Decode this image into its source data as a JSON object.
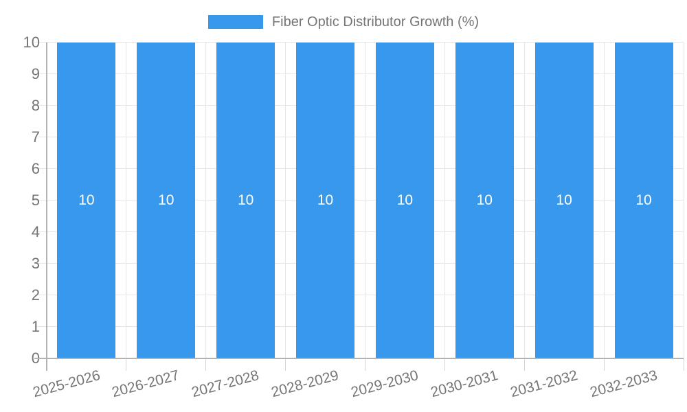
{
  "legend": {
    "label": "Fiber Optic Distributor Growth (%)"
  },
  "colors": {
    "bar": "#3899ec",
    "grid": "#e6e6e6",
    "tick": "#d4d4d4",
    "axis": "#b3b3b3",
    "tick_text": "#757575",
    "bar_label_text": "#ffffff",
    "background": "#ffffff"
  },
  "chart_data": {
    "type": "bar",
    "title": "Fiber Optic Distributor Growth (%)",
    "categories": [
      "2025-2026",
      "2026-2027",
      "2027-2028",
      "2028-2029",
      "2029-2030",
      "2030-2031",
      "2031-2032",
      "2032-2033"
    ],
    "series": [
      {
        "name": "Fiber Optic Distributor Growth (%)",
        "values": [
          10,
          10,
          10,
          10,
          10,
          10,
          10,
          10
        ]
      }
    ],
    "xlabel": "",
    "ylabel": "",
    "ylim": [
      0,
      10
    ],
    "yticks": [
      0,
      1,
      2,
      3,
      4,
      5,
      6,
      7,
      8,
      9,
      10
    ],
    "grid": true,
    "legend_position": "top",
    "bar_label_position": "center"
  }
}
